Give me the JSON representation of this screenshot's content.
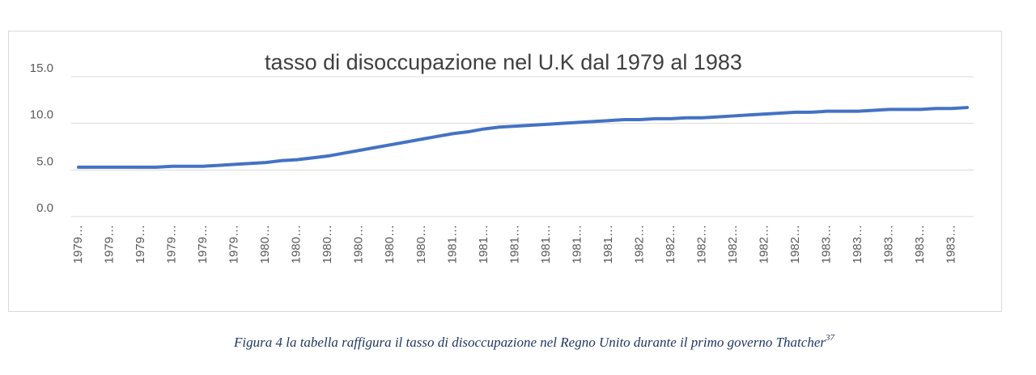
{
  "chart_data": {
    "type": "line",
    "title": "tasso di disoccupazione nel U.K dal 1979 al 1983",
    "categories": [
      "1979…",
      null,
      "1979…",
      null,
      "1979…",
      null,
      "1979…",
      null,
      "1979…",
      null,
      "1979…",
      null,
      "1980…",
      null,
      "1980…",
      null,
      "1980…",
      null,
      "1980…",
      null,
      "1980…",
      null,
      "1980…",
      null,
      "1981…",
      null,
      "1981…",
      null,
      "1981…",
      null,
      "1981…",
      null,
      "1981…",
      null,
      "1981…",
      null,
      "1982…",
      null,
      "1982…",
      null,
      "1982…",
      null,
      "1982…",
      null,
      "1982…",
      null,
      "1982…",
      null,
      "1983…",
      null,
      "1983…",
      null,
      "1983…",
      null,
      "1983…",
      null,
      "1983…",
      null
    ],
    "series": [
      {
        "name": "tasso",
        "color": "#4472c4",
        "values": [
          5.3,
          5.3,
          5.3,
          5.3,
          5.3,
          5.3,
          5.4,
          5.4,
          5.4,
          5.5,
          5.6,
          5.7,
          5.8,
          6.0,
          6.1,
          6.3,
          6.5,
          6.8,
          7.1,
          7.4,
          7.7,
          8.0,
          8.3,
          8.6,
          8.9,
          9.1,
          9.4,
          9.6,
          9.7,
          9.8,
          9.9,
          10.0,
          10.1,
          10.2,
          10.3,
          10.4,
          10.4,
          10.5,
          10.5,
          10.6,
          10.6,
          10.7,
          10.8,
          10.9,
          11.0,
          11.1,
          11.2,
          11.2,
          11.3,
          11.3,
          11.3,
          11.4,
          11.5,
          11.5,
          11.5,
          11.6,
          11.6,
          11.7
        ]
      }
    ],
    "ylim": [
      0,
      15
    ],
    "yticks": [
      {
        "value": 0,
        "label": "0.0"
      },
      {
        "value": 5,
        "label": "5.0"
      },
      {
        "value": 10,
        "label": "10.0"
      },
      {
        "value": 15,
        "label": "15.0"
      }
    ],
    "grid": true
  },
  "caption": {
    "text": "Figura 4 la tabella raffigura il tasso di disoccupazione nel Regno Unito durante il primo governo Thatcher",
    "note": "37"
  }
}
